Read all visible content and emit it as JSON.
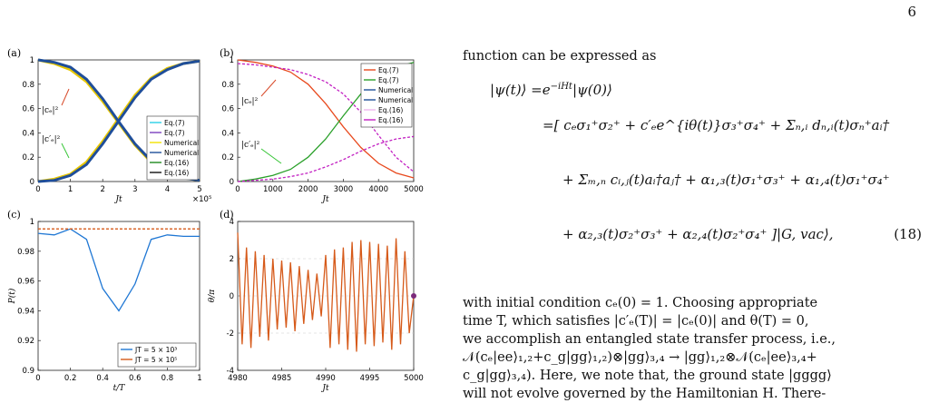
{
  "page_number": "6",
  "panels": {
    "a": {
      "label": "(a)",
      "xlabel": "Jt",
      "x_exponent": "×10⁵",
      "curve_label_1": "|cₑ|²",
      "curve_label_2": "|c′ₑ|²"
    },
    "b": {
      "label": "(b)",
      "xlabel": "Jt",
      "curve_label_1": "|cₑ|²",
      "curve_label_2": "|c′ₑ|²"
    },
    "c": {
      "label": "(c)",
      "xlabel": "t/T",
      "ylabel": "P(t)"
    },
    "d": {
      "label": "(d)",
      "xlabel": "Jt",
      "ylabel": "θ/π"
    }
  },
  "chart_data": [
    {
      "panel": "a",
      "type": "line",
      "xlim": [
        0,
        5
      ],
      "ylim": [
        0,
        1
      ],
      "x_ticks": [
        "0",
        "1",
        "2",
        "3",
        "4",
        "5"
      ],
      "y_ticks": [
        "0",
        "0.2",
        "0.4",
        "0.6",
        "0.8",
        "1"
      ],
      "legend": [
        "Eq.(7)",
        "Eq.(7)",
        "Numerical",
        "Numerical",
        "Eq.(16)",
        "Eq.(16)"
      ],
      "legend_placement": "center-right",
      "series": [
        {
          "color": "#e8c700",
          "x": [
            0,
            0.5,
            1,
            1.5,
            2,
            2.5,
            3,
            3.5,
            4,
            4.5,
            5
          ],
          "y": [
            1,
            0.97,
            0.92,
            0.82,
            0.66,
            0.48,
            0.3,
            0.16,
            0.07,
            0.03,
            0.01
          ]
        },
        {
          "color": "#e8c700",
          "x": [
            0,
            0.5,
            1,
            1.5,
            2,
            2.5,
            3,
            3.5,
            4,
            4.5,
            5
          ],
          "y": [
            0,
            0.02,
            0.06,
            0.16,
            0.33,
            0.52,
            0.71,
            0.85,
            0.93,
            0.97,
            0.99
          ]
        },
        {
          "color": "#1f4e9a",
          "x": [
            0,
            0.5,
            1,
            1.5,
            2,
            2.5,
            3,
            3.5,
            4,
            4.5,
            5
          ],
          "y": [
            1,
            0.98,
            0.94,
            0.84,
            0.68,
            0.49,
            0.31,
            0.17,
            0.08,
            0.03,
            0.01
          ]
        },
        {
          "color": "#1f4e9a",
          "x": [
            0,
            0.5,
            1,
            1.5,
            2,
            2.5,
            3,
            3.5,
            4,
            4.5,
            5
          ],
          "y": [
            0,
            0.01,
            0.05,
            0.14,
            0.31,
            0.5,
            0.69,
            0.84,
            0.92,
            0.97,
            0.99
          ]
        }
      ]
    },
    {
      "panel": "b",
      "type": "line",
      "xlim": [
        0,
        5000
      ],
      "ylim": [
        0,
        1
      ],
      "x_ticks": [
        "0",
        "1000",
        "2000",
        "3000",
        "4000",
        "5000"
      ],
      "y_ticks": [
        "0",
        "0.2",
        "0.4",
        "0.6",
        "0.8",
        "1"
      ],
      "legend": [
        "Eq.(7)",
        "Eq.(7)",
        "Numerical",
        "Numerical",
        "Eq.(16)",
        "Eq.(16)"
      ],
      "legend_placement": "top-right",
      "series": [
        {
          "color": "#e8491d",
          "x": [
            0,
            500,
            1000,
            1500,
            2000,
            2500,
            3000,
            3500,
            4000,
            4500,
            5000
          ],
          "y": [
            1,
            0.98,
            0.95,
            0.9,
            0.8,
            0.64,
            0.45,
            0.28,
            0.15,
            0.07,
            0.03
          ]
        },
        {
          "color": "#2aa02a",
          "x": [
            0,
            500,
            1000,
            1500,
            2000,
            2500,
            3000,
            3500,
            4000,
            4500,
            5000
          ],
          "y": [
            0,
            0.02,
            0.05,
            0.1,
            0.2,
            0.35,
            0.54,
            0.72,
            0.86,
            0.94,
            0.98
          ]
        },
        {
          "color": "#c21fc2",
          "x": [
            0,
            500,
            1000,
            1500,
            2000,
            2500,
            3000,
            3500,
            4000,
            4500,
            5000
          ],
          "y": [
            0.97,
            0.96,
            0.94,
            0.92,
            0.88,
            0.82,
            0.72,
            0.57,
            0.38,
            0.2,
            0.08
          ]
        },
        {
          "color": "#c21fc2",
          "x": [
            0,
            500,
            1000,
            1500,
            2000,
            2500,
            3000,
            3500,
            4000,
            4500,
            5000
          ],
          "y": [
            0,
            0.01,
            0.02,
            0.04,
            0.07,
            0.12,
            0.18,
            0.25,
            0.31,
            0.35,
            0.37
          ]
        }
      ]
    },
    {
      "panel": "c",
      "type": "line",
      "xlim": [
        0,
        1
      ],
      "ylim": [
        0.9,
        1
      ],
      "x_ticks": [
        "0",
        "0.2",
        "0.4",
        "0.6",
        "0.8",
        "1"
      ],
      "y_ticks": [
        "0.9",
        "0.92",
        "0.94",
        "0.96",
        "0.98",
        "1"
      ],
      "legend": [
        "JT = 5 × 10³",
        "JT = 5 × 10⁵"
      ],
      "legend_placement": "bottom-right",
      "series": [
        {
          "name": "JT = 5 × 10³",
          "color": "#1f77d4",
          "x": [
            0,
            0.1,
            0.2,
            0.3,
            0.4,
            0.5,
            0.6,
            0.7,
            0.8,
            0.9,
            1
          ],
          "y": [
            0.992,
            0.991,
            0.995,
            0.988,
            0.955,
            0.94,
            0.958,
            0.988,
            0.991,
            0.99,
            0.99
          ]
        },
        {
          "name": "JT = 5 × 10⁵",
          "color": "#d65a1a",
          "x": [
            0,
            0.1,
            0.2,
            0.3,
            0.4,
            0.5,
            0.6,
            0.7,
            0.8,
            0.9,
            1
          ],
          "y": [
            0.995,
            0.995,
            0.995,
            0.995,
            0.995,
            0.995,
            0.995,
            0.995,
            0.995,
            0.995,
            0.995
          ]
        }
      ]
    },
    {
      "panel": "d",
      "type": "line",
      "xlim": [
        4980,
        5000
      ],
      "ylim": [
        -4,
        4
      ],
      "x_ticks": [
        "4980",
        "4985",
        "4990",
        "4995",
        "5000"
      ],
      "y_ticks": [
        "-4",
        "-2",
        "0",
        "2",
        "4"
      ],
      "series": [
        {
          "color": "#d65a1a",
          "x": [
            4980,
            4980.5,
            4981,
            4981.5,
            4982,
            4982.5,
            4983,
            4983.5,
            4984,
            4984.5,
            4985,
            4985.5,
            4986,
            4986.5,
            4987,
            4987.5,
            4988,
            4988.5,
            4989,
            4989.5,
            4990,
            4990.5,
            4991,
            4991.5,
            4992,
            4992.5,
            4993,
            4993.5,
            4994,
            4994.5,
            4995,
            4995.5,
            4996,
            4996.5,
            4997,
            4997.5,
            4998,
            4998.5,
            4999,
            4999.5,
            5000
          ],
          "y": [
            3.4,
            -2.6,
            2.6,
            -2.8,
            2.4,
            -2.2,
            2.2,
            -2.4,
            2.0,
            -1.8,
            1.9,
            -1.7,
            1.8,
            -1.9,
            1.6,
            -1.5,
            1.4,
            -1.3,
            1.2,
            -1.1,
            2.2,
            -2.8,
            2.5,
            -2.6,
            2.6,
            -2.9,
            2.9,
            -3.0,
            3.0,
            -2.6,
            2.9,
            -2.7,
            2.8,
            -2.5,
            2.7,
            -2.9,
            3.1,
            -2.6,
            2.4,
            -2.0,
            0
          ]
        },
        {
          "color": "#7b2a7b",
          "x": [
            5000
          ],
          "y": [
            0
          ],
          "marker": "dot"
        }
      ]
    }
  ],
  "text": {
    "intro": "function can be expressed as",
    "eq_lhs": "|ψ(t)⟩ =e",
    "eq_exp": "−iHt",
    "eq_l1_rest": "|ψ(0)⟩",
    "eq_l2": "=[ cₑσ₁⁺σ₂⁺ + c′ₑe^{iθ(t)}σ₃⁺σ₄⁺ + Σₙ,ᵢ dₙ,ᵢ(t)σₙ⁺aᵢ†",
    "eq_l3": "+ Σₘ,ₙ cᵢ,ⱼ(t)aᵢ†aⱼ† + α₁,₃(t)σ₁⁺σ₃⁺ + α₁,₄(t)σ₁⁺σ₄⁺",
    "eq_l4": "+ α₂,₃(t)σ₂⁺σ₃⁺ + α₂,₄(t)σ₂⁺σ₄⁺ ]|G, vac⟩,",
    "eq_number": "(18)",
    "p2_l1": "with initial condition cₑ(0) = 1. Choosing appropriate",
    "p2_l2": "time T, which satisfies |c′ₑ(T)| = |cₑ(0)| and θ(T) = 0,",
    "p2_l3": "we accomplish an entangled state transfer process, i.e.,",
    "p2_l4": "𝒩(cₑ|ee⟩₁,₂+c_g|gg⟩₁,₂)⊗|gg⟩₃,₄ → |gg⟩₁,₂⊗𝒩(cₑ|ee⟩₃,₄+",
    "p2_l5": "c_g|gg⟩₃,₄). Here, we note that, the ground state |gggg⟩",
    "p2_l6": "will not evolve governed by the Hamiltonian H. There-"
  }
}
